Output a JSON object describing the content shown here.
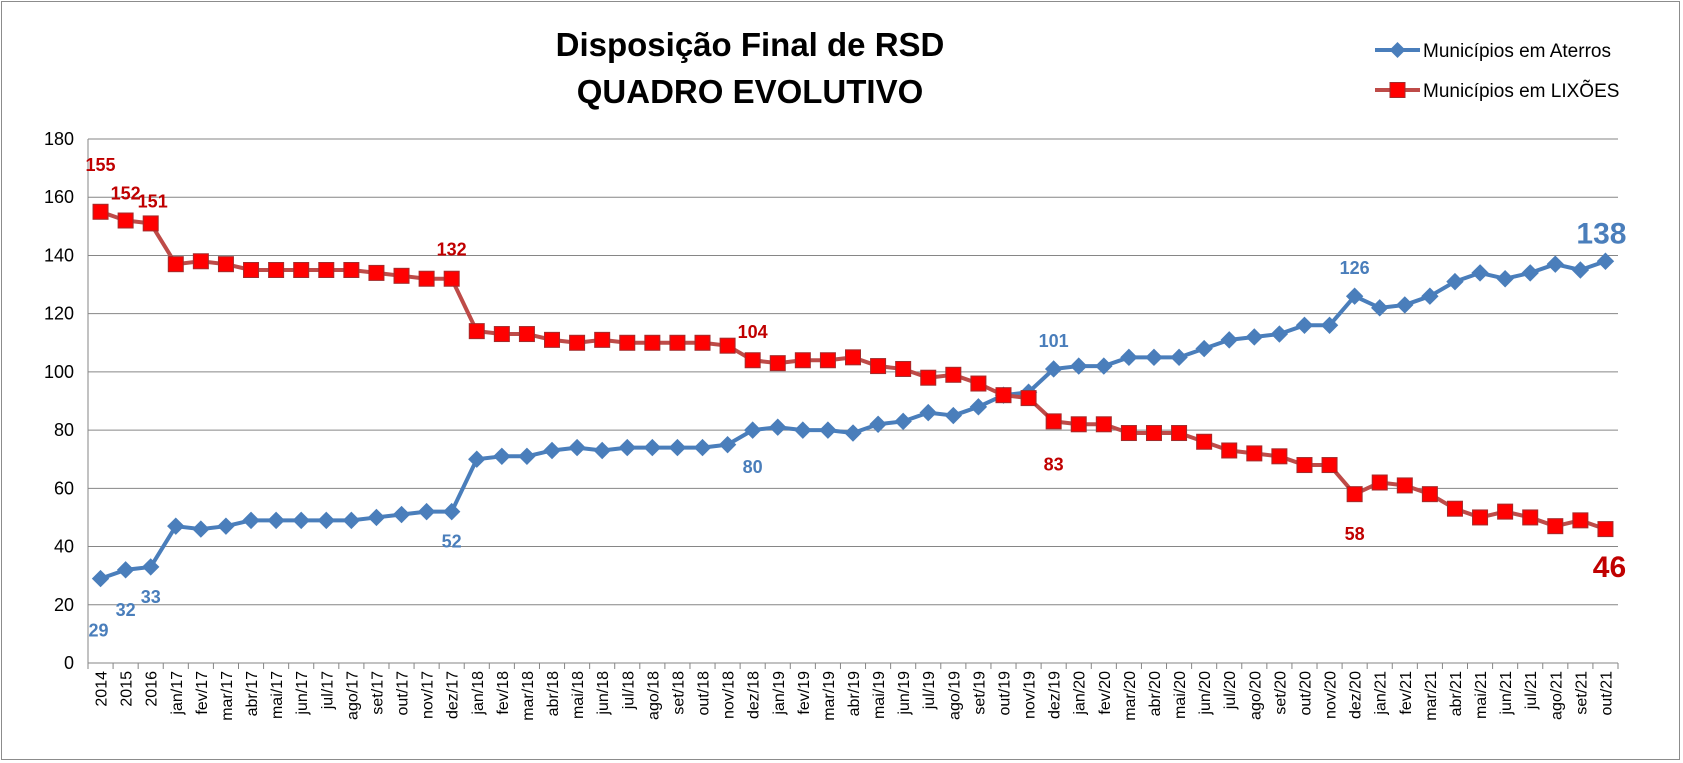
{
  "chart_data": {
    "type": "line",
    "title": [
      "Disposição Final de RSD",
      "QUADRO EVOLUTIVO"
    ],
    "categories": [
      "2014",
      "2015",
      "2016",
      "jan/17",
      "fev/17",
      "mar/17",
      "abr/17",
      "mai/17",
      "jun/17",
      "jul/17",
      "ago/17",
      "set/17",
      "out/17",
      "nov/17",
      "dez/17",
      "jan/18",
      "fev/18",
      "mar/18",
      "abr/18",
      "mai/18",
      "jun/18",
      "jul/18",
      "ago/18",
      "set/18",
      "out/18",
      "nov/18",
      "dez/18",
      "jan/19",
      "fev/19",
      "mar/19",
      "abr/19",
      "mai/19",
      "jun/19",
      "jul/19",
      "ago/19",
      "set/19",
      "out/19",
      "nov/19",
      "dez/19",
      "jan/20",
      "fev/20",
      "mar/20",
      "abr/20",
      "mai/20",
      "jun/20",
      "jul/20",
      "ago/20",
      "set/20",
      "out/20",
      "nov/20",
      "dez/20",
      "jan/21",
      "fev/21",
      "mar/21",
      "abr/21",
      "mai/21",
      "jun/21",
      "jul/21",
      "ago/21",
      "set/21",
      "out/21"
    ],
    "ylim": [
      0,
      180
    ],
    "yticks": [
      "0",
      "20",
      "40",
      "60",
      "80",
      "100",
      "120",
      "140",
      "160",
      "180"
    ],
    "grid": true,
    "legend_position": "top-right",
    "series": [
      {
        "name": "Municípios em Aterros",
        "color": "#4a7ebb",
        "marker": "diamond",
        "values": [
          29,
          32,
          33,
          47,
          46,
          47,
          49,
          49,
          49,
          49,
          49,
          50,
          51,
          52,
          52,
          70,
          71,
          71,
          73,
          74,
          73,
          74,
          74,
          74,
          74,
          75,
          80,
          81,
          80,
          80,
          79,
          82,
          83,
          86,
          85,
          88,
          92,
          93,
          101,
          102,
          102,
          105,
          105,
          105,
          108,
          111,
          112,
          113,
          116,
          116,
          126,
          122,
          123,
          126,
          131,
          134,
          132,
          134,
          137,
          135,
          138
        ],
        "labels": [
          {
            "index": 0,
            "text": "29"
          },
          {
            "index": 1,
            "text": "32"
          },
          {
            "index": 2,
            "text": "33"
          },
          {
            "index": 14,
            "text": "52"
          },
          {
            "index": 26,
            "text": "80"
          },
          {
            "index": 38,
            "text": "101"
          },
          {
            "index": 50,
            "text": "126"
          },
          {
            "index": 60,
            "text": "138"
          }
        ]
      },
      {
        "name": "Municípios em LIXÕES",
        "color": "#be4b48",
        "marker_fill": "#ff0000",
        "marker": "square",
        "values": [
          155,
          152,
          151,
          137,
          138,
          137,
          135,
          135,
          135,
          135,
          135,
          134,
          133,
          132,
          132,
          114,
          113,
          113,
          111,
          110,
          111,
          110,
          110,
          110,
          110,
          109,
          104,
          103,
          104,
          104,
          105,
          102,
          101,
          98,
          99,
          96,
          92,
          91,
          83,
          82,
          82,
          79,
          79,
          79,
          76,
          73,
          72,
          71,
          68,
          68,
          58,
          62,
          61,
          58,
          53,
          50,
          52,
          50,
          47,
          49,
          46
        ],
        "labels": [
          {
            "index": 0,
            "text": "155"
          },
          {
            "index": 1,
            "text": "152"
          },
          {
            "index": 2,
            "text": "151"
          },
          {
            "index": 14,
            "text": "132"
          },
          {
            "index": 26,
            "text": "104"
          },
          {
            "index": 38,
            "text": "83"
          },
          {
            "index": 50,
            "text": "58"
          },
          {
            "index": 60,
            "text": "46"
          }
        ]
      }
    ]
  }
}
